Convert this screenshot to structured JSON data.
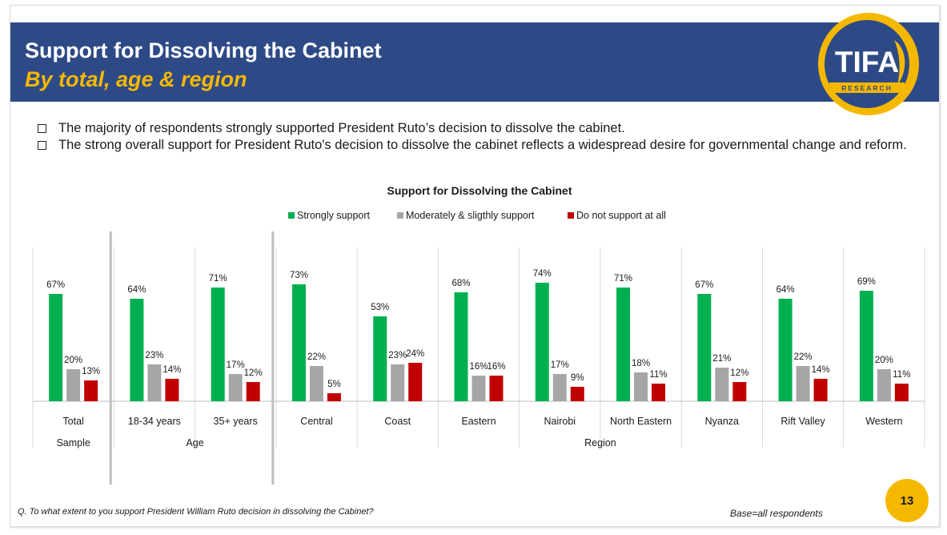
{
  "header": {
    "title": "Support for Dissolving the Cabinet",
    "subtitle": "By total, age & region",
    "logo_text": "TIFA",
    "logo_subtext": "RESEARCH"
  },
  "bullets": [
    "The majority of respondents strongly supported President Ruto’s decision to dissolve the cabinet.",
    "The strong overall support for President Ruto's decision to dissolve the cabinet reflects a widespread desire for governmental change and reform."
  ],
  "colors": {
    "header_bg": "#2e4a86",
    "accent_yellow": "#f5b800",
    "strongly": "#00b050",
    "moderately": "#a6a6a6",
    "not_support": "#c00000"
  },
  "chart_data": {
    "type": "bar",
    "title": "Support for Dissolving the Cabinet",
    "legend_position": "top",
    "categories": [
      "Total",
      "18-34 years",
      "35+ years",
      "Central",
      "Coast",
      "Eastern",
      "Nairobi",
      "North Eastern",
      "Nyanza",
      "Rift Valley",
      "Western"
    ],
    "groups": [
      {
        "label": "Sample",
        "start": 0,
        "end": 0
      },
      {
        "label": "Age",
        "start": 1,
        "end": 2
      },
      {
        "label": "Region",
        "start": 3,
        "end": 10
      }
    ],
    "series": [
      {
        "name": "Strongly support",
        "color": "#00b050",
        "values": [
          67,
          64,
          71,
          73,
          53,
          68,
          74,
          71,
          67,
          64,
          69
        ]
      },
      {
        "name": "Moderately & sligthly support",
        "color": "#a6a6a6",
        "values": [
          20,
          23,
          17,
          22,
          23,
          16,
          17,
          18,
          21,
          22,
          20
        ]
      },
      {
        "name": "Do not support at all",
        "color": "#c00000",
        "values": [
          13,
          14,
          12,
          5,
          24,
          16,
          9,
          11,
          12,
          14,
          11
        ]
      }
    ],
    "value_suffix": "%",
    "ylim": [
      0,
      85
    ]
  },
  "footer": {
    "question": "Q. To what extent to you support President William Ruto decision in dissolving the Cabinet?",
    "base": "Base=all respondents",
    "page_number": "13"
  }
}
